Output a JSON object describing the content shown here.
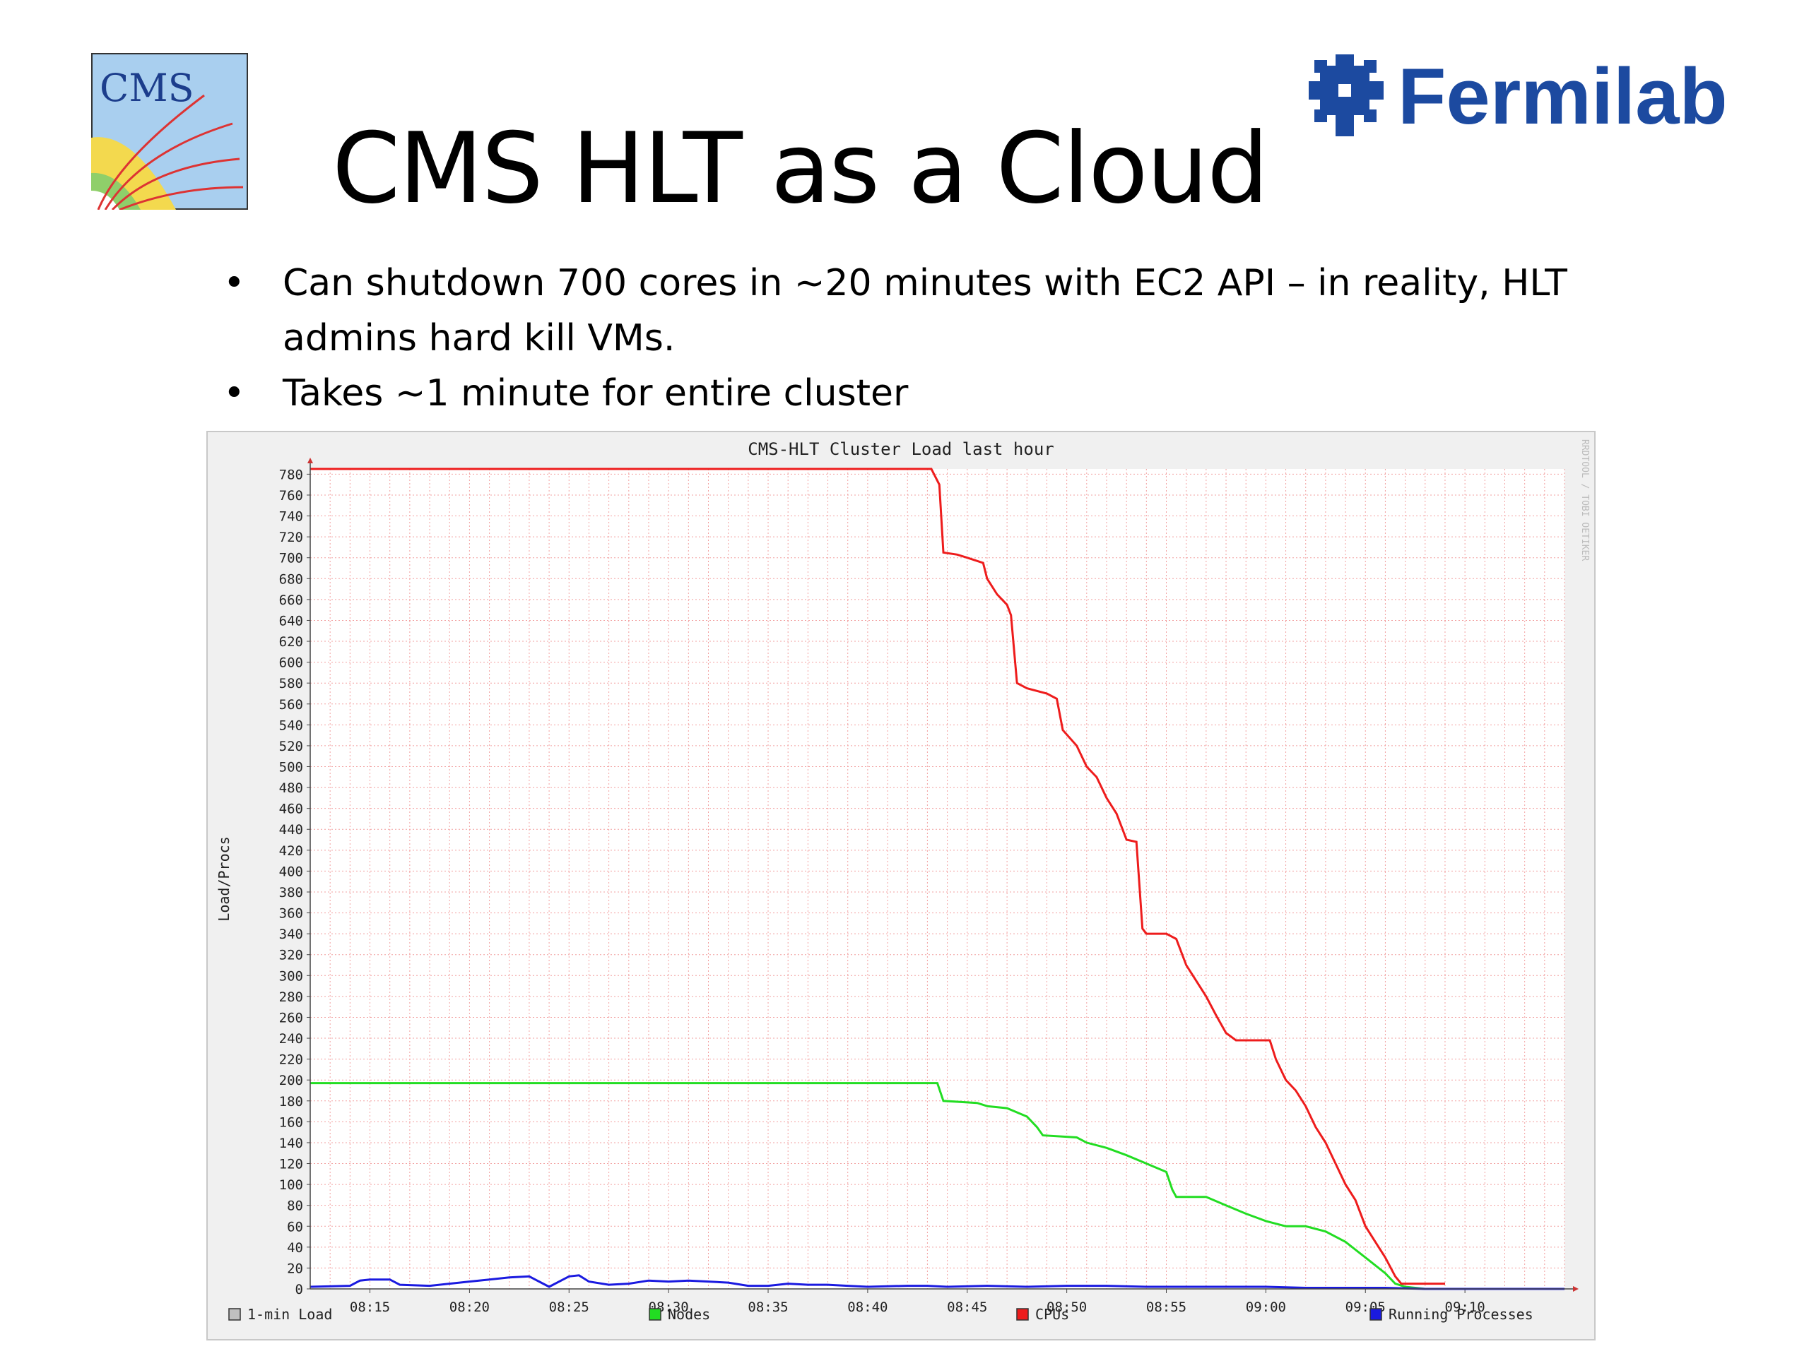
{
  "slide": {
    "cms_logo_text": "CMS",
    "fermilab_logo_text": "Fermilab",
    "title": "CMS HLT as a Cloud",
    "bullets": [
      "Can shutdown 700 cores in ~20 minutes with EC2 API – in reality, HLT admins hard kill VMs.",
      "Takes ~1 minute for entire cluster"
    ],
    "bullet_symbol": "•"
  },
  "colors": {
    "cpus": "#ee1c1c",
    "nodes": "#22dd22",
    "running": "#1a1ae0",
    "one_min": "#c0c0c0",
    "grid": "#f2a0a0",
    "fermilab_blue": "#1c4aa0"
  },
  "chart_data": {
    "type": "line",
    "title": "CMS-HLT Cluster Load last hour",
    "xlabel": "",
    "ylabel": "Load/Procs",
    "watermark": "RRDTOOL / TOBI OETIKER",
    "x_ticks": [
      "08:15",
      "08:20",
      "08:25",
      "08:30",
      "08:35",
      "08:40",
      "08:45",
      "08:50",
      "08:55",
      "09:00",
      "09:05",
      "09:10"
    ],
    "xlim": [
      "08:12",
      "09:15"
    ],
    "y_ticks": [
      0,
      20,
      40,
      60,
      80,
      100,
      120,
      140,
      160,
      180,
      200,
      220,
      240,
      260,
      280,
      300,
      320,
      340,
      360,
      380,
      400,
      420,
      440,
      460,
      480,
      500,
      520,
      540,
      560,
      580,
      600,
      620,
      640,
      660,
      680,
      700,
      720,
      740,
      760,
      780
    ],
    "ylim": [
      0,
      785
    ],
    "grid": true,
    "legend_position": "bottom",
    "series": [
      {
        "name": "1-min Load",
        "color_key": "one_min",
        "points": []
      },
      {
        "name": "Nodes",
        "color_key": "nodes",
        "points": [
          [
            "08:12",
            197
          ],
          [
            "08:43.5",
            197
          ],
          [
            "08:43.8",
            180
          ],
          [
            "08:45.5",
            178
          ],
          [
            "08:46",
            175
          ],
          [
            "08:47",
            173
          ],
          [
            "08:48",
            165
          ],
          [
            "08:48.5",
            155
          ],
          [
            "08:48.8",
            147
          ],
          [
            "08:50.5",
            145
          ],
          [
            "08:51",
            140
          ],
          [
            "08:52",
            135
          ],
          [
            "08:53",
            128
          ],
          [
            "08:54",
            120
          ],
          [
            "08:55",
            112
          ],
          [
            "08:55.3",
            95
          ],
          [
            "08:55.5",
            88
          ],
          [
            "08:57",
            88
          ],
          [
            "08:58",
            80
          ],
          [
            "08:59",
            72
          ],
          [
            "09:00",
            65
          ],
          [
            "09:01",
            60
          ],
          [
            "09:02",
            60
          ],
          [
            "09:03",
            55
          ],
          [
            "09:04",
            45
          ],
          [
            "09:05",
            30
          ],
          [
            "09:06",
            15
          ],
          [
            "09:06.5",
            5
          ],
          [
            "09:07",
            2
          ],
          [
            "09:08",
            0
          ],
          [
            "09:15",
            0
          ]
        ]
      },
      {
        "name": "CPUs",
        "color_key": "cpus",
        "points": [
          [
            "08:12",
            785
          ],
          [
            "08:43.2",
            785
          ],
          [
            "08:43.6",
            770
          ],
          [
            "08:43.8",
            705
          ],
          [
            "08:44.5",
            703
          ],
          [
            "08:45",
            700
          ],
          [
            "08:45.8",
            695
          ],
          [
            "08:46",
            680
          ],
          [
            "08:46.5",
            665
          ],
          [
            "08:47",
            655
          ],
          [
            "08:47.2",
            645
          ],
          [
            "08:47.5",
            580
          ],
          [
            "08:48",
            575
          ],
          [
            "08:49",
            570
          ],
          [
            "08:49.5",
            565
          ],
          [
            "08:49.8",
            535
          ],
          [
            "08:50.5",
            520
          ],
          [
            "08:51",
            500
          ],
          [
            "08:51.5",
            490
          ],
          [
            "08:52",
            470
          ],
          [
            "08:52.5",
            455
          ],
          [
            "08:53",
            430
          ],
          [
            "08:53.5",
            428
          ],
          [
            "08:53.8",
            345
          ],
          [
            "08:54",
            340
          ],
          [
            "08:55",
            340
          ],
          [
            "08:55.5",
            335
          ],
          [
            "08:56",
            310
          ],
          [
            "08:56.5",
            295
          ],
          [
            "08:57",
            280
          ],
          [
            "08:57.5",
            262
          ],
          [
            "08:58",
            245
          ],
          [
            "08:58.5",
            238
          ],
          [
            "09:00.2",
            238
          ],
          [
            "09:00.5",
            220
          ],
          [
            "09:01",
            200
          ],
          [
            "09:01.5",
            190
          ],
          [
            "09:02",
            175
          ],
          [
            "09:02.5",
            155
          ],
          [
            "09:03",
            140
          ],
          [
            "09:03.5",
            120
          ],
          [
            "09:04",
            100
          ],
          [
            "09:04.5",
            85
          ],
          [
            "09:05",
            60
          ],
          [
            "09:05.5",
            45
          ],
          [
            "09:06",
            30
          ],
          [
            "09:06.5",
            12
          ],
          [
            "09:06.8",
            5
          ],
          [
            "09:09",
            5
          ]
        ]
      },
      {
        "name": "Running Processes",
        "color_key": "running",
        "points": [
          [
            "08:12",
            2
          ],
          [
            "08:14",
            3
          ],
          [
            "08:14.5",
            8
          ],
          [
            "08:15",
            9
          ],
          [
            "08:16",
            9
          ],
          [
            "08:16.5",
            4
          ],
          [
            "08:18",
            3
          ],
          [
            "08:19",
            5
          ],
          [
            "08:20",
            7
          ],
          [
            "08:21",
            9
          ],
          [
            "08:22",
            11
          ],
          [
            "08:23",
            12
          ],
          [
            "08:24",
            2
          ],
          [
            "08:25",
            12
          ],
          [
            "08:25.5",
            13
          ],
          [
            "08:26",
            7
          ],
          [
            "08:27",
            4
          ],
          [
            "08:28",
            5
          ],
          [
            "08:29",
            8
          ],
          [
            "08:30",
            7
          ],
          [
            "08:31",
            8
          ],
          [
            "08:32",
            7
          ],
          [
            "08:33",
            6
          ],
          [
            "08:34",
            3
          ],
          [
            "08:35",
            3
          ],
          [
            "08:36",
            5
          ],
          [
            "08:37",
            4
          ],
          [
            "08:38",
            4
          ],
          [
            "08:39",
            3
          ],
          [
            "08:40",
            2
          ],
          [
            "08:42",
            3
          ],
          [
            "08:43",
            3
          ],
          [
            "08:44",
            2
          ],
          [
            "08:46",
            3
          ],
          [
            "08:48",
            2
          ],
          [
            "08:50",
            3
          ],
          [
            "08:52",
            3
          ],
          [
            "08:54",
            2
          ],
          [
            "08:56",
            2
          ],
          [
            "08:58",
            2
          ],
          [
            "09:00",
            2
          ],
          [
            "09:02",
            1
          ],
          [
            "09:04",
            1
          ],
          [
            "09:06",
            1
          ],
          [
            "09:08",
            0
          ],
          [
            "09:15",
            0
          ]
        ]
      }
    ]
  }
}
